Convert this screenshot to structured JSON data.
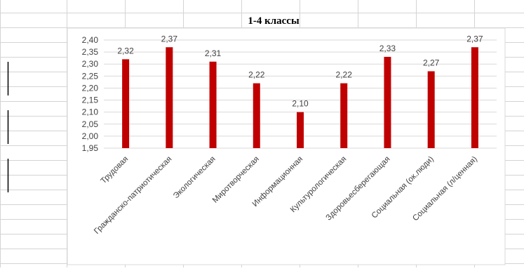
{
  "chart_data": {
    "type": "bar",
    "title": "1-4 классы",
    "categories": [
      "Трудовая",
      "Гражданско-патриотическая",
      "Экологическая",
      "Миротворческая",
      "Информационная",
      "Культурологическая",
      "Здоровьесберегающая",
      "Социальная (ок.люди)",
      "Социальная (л/ценная)"
    ],
    "values": [
      2.32,
      2.37,
      2.31,
      2.22,
      2.1,
      2.22,
      2.33,
      2.27,
      2.37
    ],
    "data_labels": [
      "2,32",
      "2,37",
      "2,31",
      "2,22",
      "2,10",
      "2,22",
      "2,33",
      "2,27",
      "2,37"
    ],
    "ylim": [
      1.95,
      2.4
    ],
    "yticks": [
      1.95,
      2.0,
      2.05,
      2.1,
      2.15,
      2.2,
      2.25,
      2.3,
      2.35,
      2.4
    ],
    "ytick_labels": [
      "1,95",
      "2,00",
      "2,05",
      "2,10",
      "2,15",
      "2,20",
      "2,25",
      "2,30",
      "2,35",
      "2,40"
    ],
    "grid": true,
    "legend": "none",
    "colors": {
      "bar": "#c00000",
      "grid": "#d9d9d9",
      "sheet_grid": "#d4d4d4",
      "text": "#404040"
    }
  }
}
